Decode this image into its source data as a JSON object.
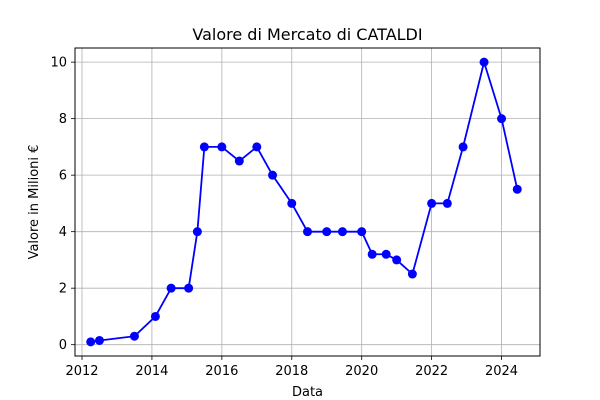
{
  "chart_data": {
    "type": "line",
    "title": "Valore di Mercato di CATALDI",
    "xlabel": "Data",
    "ylabel": "Valore in Milioni €",
    "xlim": [
      2011.8,
      2025.1
    ],
    "ylim": [
      -0.4,
      10.5
    ],
    "xticks": [
      2012,
      2014,
      2016,
      2018,
      2020,
      2022,
      2024
    ],
    "yticks": [
      0,
      2,
      4,
      6,
      8,
      10
    ],
    "grid": true,
    "series": [
      {
        "color": "#0000ff",
        "marker": "circle",
        "x": [
          2012.25,
          2012.5,
          2013.5,
          2014.1,
          2014.55,
          2015.05,
          2015.3,
          2015.5,
          2016.0,
          2016.5,
          2017.0,
          2017.45,
          2018.0,
          2018.45,
          2019.0,
          2019.45,
          2020.0,
          2020.3,
          2020.7,
          2021.0,
          2021.45,
          2022.0,
          2022.45,
          2022.9,
          2023.5,
          2024.0,
          2024.45
        ],
        "y": [
          0.1,
          0.15,
          0.3,
          1.0,
          2.0,
          2.0,
          4.0,
          7.0,
          7.0,
          6.5,
          7.0,
          6.0,
          5.0,
          4.0,
          4.0,
          4.0,
          4.0,
          3.2,
          3.2,
          3.0,
          2.5,
          5.0,
          5.0,
          7.0,
          10.0,
          8.0,
          5.5
        ]
      }
    ]
  }
}
